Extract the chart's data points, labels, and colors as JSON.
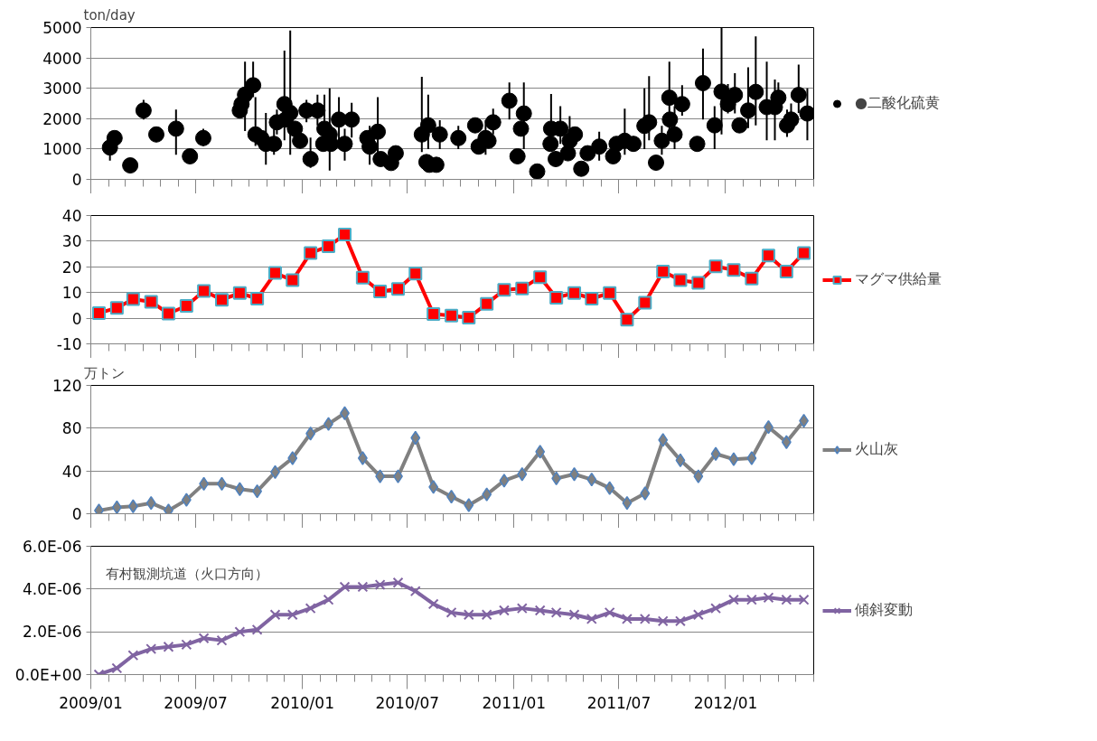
{
  "chart_data": [
    {
      "type": "scatter",
      "ylabel": "ton/day",
      "marker": "circle",
      "grid": "y",
      "legend": "right",
      "tick_labels": "y",
      "xlim": [
        "2009-01-01",
        "2012-06-01"
      ],
      "xticks": [
        {
          "value": "2009-01",
          "label": null
        },
        {
          "value": "2009-07",
          "label": null
        },
        {
          "value": "2010-01",
          "label": null
        },
        {
          "value": "2010-07",
          "label": null
        },
        {
          "value": "2011-01",
          "label": null
        },
        {
          "value": "2011-07",
          "label": null
        },
        {
          "value": "2012-01",
          "label": null
        }
      ],
      "ylim": [
        0,
        5000
      ],
      "yticks": [
        0,
        1000,
        2000,
        3000,
        4000,
        5000
      ],
      "series": [
        {
          "name": "●二酸化硫黄",
          "color": "#000000",
          "x": [
            "2009-02-03",
            "2009-02-11",
            "2009-03-10",
            "2009-04-02",
            "2009-04-24",
            "2009-05-28",
            "2009-06-21",
            "2009-07-14",
            "2009-09-15",
            "2009-09-18",
            "2009-09-24",
            "2009-10-08",
            "2009-10-12",
            "2009-10-22",
            "2009-10-30",
            "2009-11-13",
            "2009-11-18",
            "2009-12-01",
            "2009-12-03",
            "2009-12-11",
            "2009-12-19",
            "2009-12-28",
            "2010-01-08",
            "2010-01-15",
            "2010-01-27",
            "2010-02-08",
            "2010-02-06",
            "2010-02-17",
            "2010-02-19",
            "2010-03-05",
            "2010-03-15",
            "2010-03-27",
            "2010-04-23",
            "2010-04-27",
            "2010-05-11",
            "2010-05-16",
            "2010-06-03",
            "2010-06-11",
            "2010-07-26",
            "2010-08-06",
            "2010-08-03",
            "2010-08-08",
            "2010-08-20",
            "2010-08-26",
            "2010-09-27",
            "2010-10-26",
            "2010-11-01",
            "2010-11-13",
            "2010-11-18",
            "2010-11-26",
            "2010-12-24",
            "2011-01-07",
            "2011-01-13",
            "2011-01-18",
            "2011-02-10",
            "2011-03-06",
            "2011-03-05",
            "2011-03-14",
            "2011-03-22",
            "2011-04-04",
            "2011-04-07",
            "2011-04-16",
            "2011-04-27",
            "2011-05-08",
            "2011-05-28",
            "2011-06-21",
            "2011-06-27",
            "2011-07-11",
            "2011-07-26",
            "2011-08-14",
            "2011-08-22",
            "2011-09-03",
            "2011-09-13",
            "2011-09-26",
            "2011-09-27",
            "2011-10-05",
            "2011-10-18",
            "2011-11-13",
            "2011-11-23",
            "2011-12-13",
            "2011-12-25",
            "2012-01-05",
            "2012-01-17",
            "2012-01-25",
            "2012-02-09",
            "2012-02-22",
            "2012-03-12",
            "2012-03-26",
            "2012-04-01",
            "2012-04-16",
            "2012-04-23",
            "2012-05-06",
            "2012-05-21"
          ],
          "values": [
            1050,
            1360,
            460,
            2270,
            1480,
            1670,
            760,
            1360,
            2270,
            2480,
            2790,
            3100,
            1480,
            1360,
            1170,
            1170,
            1880,
            2480,
            1970,
            2190,
            1670,
            1270,
            2270,
            670,
            2270,
            1670,
            1170,
            1480,
            1170,
            1970,
            1170,
            1970,
            1360,
            1080,
            1570,
            670,
            540,
            860,
            1480,
            1780,
            570,
            480,
            480,
            1480,
            1360,
            1780,
            1080,
            1360,
            1270,
            1880,
            2590,
            760,
            1670,
            2170,
            260,
            1670,
            1170,
            670,
            1670,
            860,
            1270,
            1480,
            350,
            860,
            1080,
            760,
            1170,
            1270,
            1170,
            1760,
            1880,
            550,
            1270,
            2690,
            1970,
            1480,
            2480,
            1170,
            3170,
            1780,
            2890,
            2480,
            2780,
            1780,
            2270,
            2880,
            2380,
            2380,
            2690,
            1780,
            1970,
            2780,
            2170
          ],
          "errors": [
            [
              620,
              1570
            ],
            null,
            null,
            [
              1970,
              2620
            ],
            null,
            [
              810,
              2300
            ],
            null,
            [
              1100,
              1670
            ],
            null,
            null,
            [
              1590,
              3880
            ],
            [
              2710,
              3880
            ],
            [
              1100,
              2710
            ],
            null,
            [
              480,
              2190
            ],
            [
              810,
              1670
            ],
            [
              1480,
              2300
            ],
            [
              1290,
              4240
            ],
            null,
            [
              810,
              4900
            ],
            null,
            null,
            [
              1880,
              2620
            ],
            [
              380,
              1380
            ],
            [
              1780,
              2790
            ],
            [
              1670,
              2790
            ],
            null,
            [
              290,
              3000
            ],
            null,
            [
              1240,
              2710
            ],
            [
              620,
              1670
            ],
            [
              1380,
              2520
            ],
            null,
            [
              480,
              1760
            ],
            [
              900,
              2710
            ],
            null,
            null,
            null,
            [
              900,
              3380
            ],
            [
              1000,
              2790
            ],
            null,
            null,
            null,
            [
              1000,
              1950
            ],
            [
              1000,
              1760
            ],
            null,
            null,
            [
              810,
              1950
            ],
            null,
            [
              1480,
              2330
            ],
            [
              1970,
              3190
            ],
            null,
            null,
            [
              1000,
              3190
            ],
            null,
            [
              1670,
              2810
            ],
            null,
            null,
            [
              1170,
              2410
            ],
            null,
            [
              1270,
              2080
            ],
            null,
            null,
            null,
            [
              620,
              1570
            ],
            null,
            null,
            [
              810,
              2330
            ],
            null,
            [
              1000,
              3000
            ],
            [
              1290,
              3400
            ],
            null,
            [
              810,
              1760
            ],
            [
              1480,
              3880
            ],
            null,
            [
              1000,
              2410
            ],
            [
              2100,
              3100
            ],
            null,
            [
              1970,
              4310
            ],
            [
              1000,
              2410
            ],
            [
              1480,
              5000
            ],
            [
              2170,
              3140
            ],
            [
              2170,
              3500
            ],
            null,
            [
              1690,
              3690
            ],
            [
              1780,
              4710
            ],
            [
              1290,
              3880
            ],
            [
              1290,
              3290
            ],
            [
              2170,
              3190
            ],
            [
              1400,
              2300
            ],
            [
              1600,
              2500
            ],
            [
              2190,
              3780
            ],
            [
              1290,
              3000
            ]
          ]
        }
      ]
    },
    {
      "type": "line",
      "marker": "square",
      "grid": "y",
      "legend": "right",
      "tick_labels": "y",
      "xlim": [
        "2009-01-01",
        "2012-06-01"
      ],
      "xticks": [
        {
          "value": "2009-01",
          "label": null
        },
        {
          "value": "2009-07",
          "label": null
        },
        {
          "value": "2010-01",
          "label": null
        },
        {
          "value": "2010-07",
          "label": null
        },
        {
          "value": "2011-01",
          "label": null
        },
        {
          "value": "2011-07",
          "label": null
        },
        {
          "value": "2012-01",
          "label": null
        }
      ],
      "ylim": [
        -10,
        40
      ],
      "yticks": [
        -10,
        0,
        10,
        20,
        30,
        40
      ],
      "x": [
        "2009-01-15",
        "2009-02-15",
        "2009-03-15",
        "2009-04-15",
        "2009-05-15",
        "2009-06-15",
        "2009-07-15",
        "2009-08-15",
        "2009-09-15",
        "2009-10-15",
        "2009-11-15",
        "2009-12-15",
        "2010-01-15",
        "2010-02-15",
        "2010-03-15",
        "2010-04-15",
        "2010-05-15",
        "2010-06-15",
        "2010-07-15",
        "2010-08-15",
        "2010-09-15",
        "2010-10-15",
        "2010-11-15",
        "2010-12-15",
        "2011-01-15",
        "2011-02-15",
        "2011-03-15",
        "2011-04-15",
        "2011-05-15",
        "2011-06-15",
        "2011-07-15",
        "2011-08-15",
        "2011-09-15",
        "2011-10-15",
        "2011-11-15",
        "2011-12-15",
        "2012-01-15",
        "2012-02-15",
        "2012-03-15",
        "2012-04-15",
        "2012-05-15"
      ],
      "series": [
        {
          "name": "マグマ供給量",
          "color": "#ff0000",
          "values": [
            2,
            4,
            7.4,
            6.4,
            1.8,
            4.8,
            10.6,
            7.2,
            9.8,
            7.6,
            17.6,
            14.8,
            25.4,
            28,
            32.6,
            15.8,
            10.4,
            11.4,
            17.4,
            1.6,
            1,
            0.2,
            5.6,
            11,
            11.6,
            16,
            8,
            9.8,
            7.6,
            9.8,
            -0.6,
            6,
            18.2,
            14.8,
            13.8,
            20.2,
            18.8,
            15.4,
            24.4,
            18.2,
            25.4
          ]
        }
      ]
    },
    {
      "type": "line",
      "ylabel": "万トン",
      "marker": "diamond",
      "grid": "y",
      "legend": "right",
      "tick_labels": "y",
      "xlim": [
        "2009-01-01",
        "2012-06-01"
      ],
      "xticks": [
        {
          "value": "2009-01",
          "label": null
        },
        {
          "value": "2009-07",
          "label": null
        },
        {
          "value": "2010-01",
          "label": null
        },
        {
          "value": "2010-07",
          "label": null
        },
        {
          "value": "2011-01",
          "label": null
        },
        {
          "value": "2011-07",
          "label": null
        },
        {
          "value": "2012-01",
          "label": null
        }
      ],
      "ylim": [
        0,
        120
      ],
      "yticks": [
        0,
        40,
        80,
        120
      ],
      "x": [
        "2009-01-15",
        "2009-02-15",
        "2009-03-15",
        "2009-04-15",
        "2009-05-15",
        "2009-06-15",
        "2009-07-15",
        "2009-08-15",
        "2009-09-15",
        "2009-10-15",
        "2009-11-15",
        "2009-12-15",
        "2010-01-15",
        "2010-02-15",
        "2010-03-15",
        "2010-04-15",
        "2010-05-15",
        "2010-06-15",
        "2010-07-15",
        "2010-08-15",
        "2010-09-15",
        "2010-10-15",
        "2010-11-15",
        "2010-12-15",
        "2011-01-15",
        "2011-02-15",
        "2011-03-15",
        "2011-04-15",
        "2011-05-15",
        "2011-06-15",
        "2011-07-15",
        "2011-08-15",
        "2011-09-15",
        "2011-10-15",
        "2011-11-15",
        "2011-12-15",
        "2012-01-15",
        "2012-02-15",
        "2012-03-15",
        "2012-04-15",
        "2012-05-15"
      ],
      "series": [
        {
          "name": "火山灰",
          "color": "#808080",
          "values": [
            3,
            6,
            7,
            10,
            3,
            13,
            28,
            28,
            23,
            21,
            39,
            52,
            75,
            84,
            94,
            52,
            35,
            35,
            71,
            25,
            16,
            8,
            18,
            31,
            37,
            58,
            33,
            37,
            32,
            24,
            10,
            19,
            69,
            50,
            35,
            56,
            51,
            52,
            81,
            67,
            87
          ]
        }
      ]
    },
    {
      "type": "line",
      "marker": "cross",
      "grid": "y",
      "legend": "right",
      "annotations": [
        "有村観測坑道（火口方向）"
      ],
      "xlim": [
        "2009-01-01",
        "2012-06-01"
      ],
      "xticks": [
        {
          "value": "2009-01",
          "label": "2009/01"
        },
        {
          "value": "2009-07",
          "label": "2009/07"
        },
        {
          "value": "2010-01",
          "label": "2010/01"
        },
        {
          "value": "2010-07",
          "label": "2010/07"
        },
        {
          "value": "2011-01",
          "label": "2011/01"
        },
        {
          "value": "2011-07",
          "label": "2011/07"
        },
        {
          "value": "2012-01",
          "label": "2012/01"
        }
      ],
      "ylim": [
        0,
        6e-06
      ],
      "yticks": [
        {
          "value": 0,
          "label": "0.0E+00"
        },
        {
          "value": 2e-06,
          "label": "2.0E-06"
        },
        {
          "value": 4e-06,
          "label": "4.0E-06"
        },
        {
          "value": 6e-06,
          "label": "6.0E-06"
        }
      ],
      "x": [
        "2009-01-15",
        "2009-02-15",
        "2009-03-15",
        "2009-04-15",
        "2009-05-15",
        "2009-06-15",
        "2009-07-15",
        "2009-08-15",
        "2009-09-15",
        "2009-10-15",
        "2009-11-15",
        "2009-12-15",
        "2010-01-15",
        "2010-02-15",
        "2010-03-15",
        "2010-04-15",
        "2010-05-15",
        "2010-06-15",
        "2010-07-15",
        "2010-08-15",
        "2010-09-15",
        "2010-10-15",
        "2010-11-15",
        "2010-12-15",
        "2011-01-15",
        "2011-02-15",
        "2011-03-15",
        "2011-04-15",
        "2011-05-15",
        "2011-06-15",
        "2011-07-15",
        "2011-08-15",
        "2011-09-15",
        "2011-10-15",
        "2011-11-15",
        "2011-12-15",
        "2012-01-15",
        "2012-02-15",
        "2012-03-15",
        "2012-04-15",
        "2012-05-15"
      ],
      "series": [
        {
          "name": "傾斜変動",
          "color": "#8064a2",
          "values": [
            0,
            3e-07,
            9e-07,
            1.2e-06,
            1.3e-06,
            1.4e-06,
            1.7e-06,
            1.6e-06,
            2e-06,
            2.1e-06,
            2.8e-06,
            2.8e-06,
            3.1e-06,
            3.5e-06,
            4.1e-06,
            4.1e-06,
            4.2e-06,
            4.3e-06,
            3.9e-06,
            3.3e-06,
            2.9e-06,
            2.8e-06,
            2.8e-06,
            3e-06,
            3.1e-06,
            3e-06,
            2.9e-06,
            2.8e-06,
            2.6e-06,
            2.9e-06,
            2.6e-06,
            2.6e-06,
            2.5e-06,
            2.5e-06,
            2.8e-06,
            3.1e-06,
            3.5e-06,
            3.5e-06,
            3.6e-06,
            3.5e-06,
            3.5e-06
          ]
        }
      ]
    }
  ]
}
